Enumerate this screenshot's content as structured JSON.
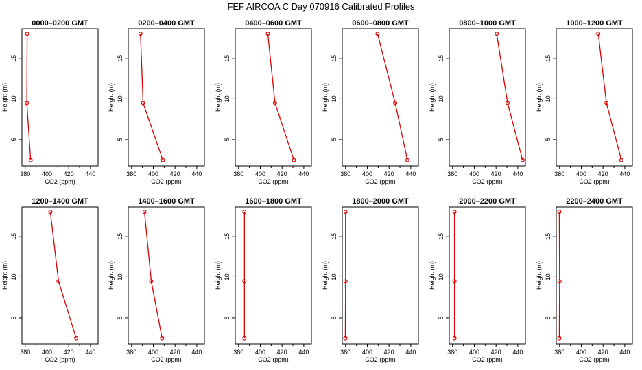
{
  "figure": {
    "title": "FEF AIRCOA C  Day 070916  Calibrated Profiles"
  },
  "colors": {
    "line": "#dd0000",
    "marker": "#dd0000",
    "axis": "#000000"
  },
  "chart_data": [
    {
      "type": "line",
      "title": "0000–0200 GMT",
      "xlabel": "CO2 (ppm)",
      "ylabel": "Height (m)",
      "xlim": [
        377,
        447
      ],
      "ylim": [
        1.8,
        18.6
      ],
      "xticks": [
        380,
        400,
        420,
        440
      ],
      "yticks": [
        5,
        10,
        15
      ],
      "x": [
        381.8,
        381.5,
        385.0
      ],
      "y": [
        18,
        9.5,
        2.5
      ]
    },
    {
      "type": "line",
      "title": "0200–0400 GMT",
      "xlabel": "CO2 (ppm)",
      "ylabel": "Height (m)",
      "xlim": [
        377,
        447
      ],
      "ylim": [
        1.8,
        18.6
      ],
      "xticks": [
        380,
        400,
        420,
        440
      ],
      "yticks": [
        5,
        10,
        15
      ],
      "x": [
        388.2,
        390.6,
        408.8
      ],
      "y": [
        18,
        9.5,
        2.5
      ]
    },
    {
      "type": "line",
      "title": "0400–0600 GMT",
      "xlabel": "CO2 (ppm)",
      "ylabel": "Height (m)",
      "xlim": [
        377,
        447
      ],
      "ylim": [
        1.8,
        18.6
      ],
      "xticks": [
        380,
        400,
        420,
        440
      ],
      "yticks": [
        5,
        10,
        15
      ],
      "x": [
        406.9,
        413.5,
        430.9
      ],
      "y": [
        18,
        9.5,
        2.5
      ]
    },
    {
      "type": "line",
      "title": "0600–0800 GMT",
      "xlabel": "CO2 (ppm)",
      "ylabel": "Height (m)",
      "xlim": [
        377,
        447
      ],
      "ylim": [
        1.8,
        18.6
      ],
      "xticks": [
        380,
        400,
        420,
        440
      ],
      "yticks": [
        5,
        10,
        15
      ],
      "x": [
        409.4,
        425.6,
        436.9
      ],
      "y": [
        18,
        9.5,
        2.5
      ]
    },
    {
      "type": "line",
      "title": "0800–1000 GMT",
      "xlabel": "CO2 (ppm)",
      "ylabel": "Height (m)",
      "xlim": [
        377,
        447
      ],
      "ylim": [
        1.8,
        18.6
      ],
      "xticks": [
        380,
        400,
        420,
        440
      ],
      "yticks": [
        5,
        10,
        15
      ],
      "x": [
        420.6,
        430.6,
        444.4
      ],
      "y": [
        18,
        9.5,
        2.5
      ]
    },
    {
      "type": "line",
      "title": "1000–1200 GMT",
      "xlabel": "CO2 (ppm)",
      "ylabel": "Height (m)",
      "xlim": [
        377,
        447
      ],
      "ylim": [
        1.8,
        18.6
      ],
      "xticks": [
        380,
        400,
        420,
        440
      ],
      "yticks": [
        5,
        10,
        15
      ],
      "x": [
        415.6,
        423.1,
        436.9
      ],
      "y": [
        18,
        9.5,
        2.5
      ]
    },
    {
      "type": "line",
      "title": "1200–1400 GMT",
      "xlabel": "CO2 (ppm)",
      "ylabel": "Height (m)",
      "xlim": [
        377,
        447
      ],
      "ylim": [
        1.8,
        18.6
      ],
      "xticks": [
        380,
        400,
        420,
        440
      ],
      "yticks": [
        5,
        10,
        15
      ],
      "x": [
        403.1,
        410.6,
        426.9
      ],
      "y": [
        18,
        9.5,
        2.5
      ]
    },
    {
      "type": "line",
      "title": "1400–1600 GMT",
      "xlabel": "CO2 (ppm)",
      "ylabel": "Height (m)",
      "xlim": [
        377,
        447
      ],
      "ylim": [
        1.8,
        18.6
      ],
      "xticks": [
        380,
        400,
        420,
        440
      ],
      "yticks": [
        5,
        10,
        15
      ],
      "x": [
        391.9,
        398.1,
        408.1
      ],
      "y": [
        18,
        9.5,
        2.5
      ]
    },
    {
      "type": "line",
      "title": "1600–1800 GMT",
      "xlabel": "CO2 (ppm)",
      "ylabel": "Height (m)",
      "xlim": [
        377,
        447
      ],
      "ylim": [
        1.8,
        18.6
      ],
      "xticks": [
        380,
        400,
        420,
        440
      ],
      "yticks": [
        5,
        10,
        15
      ],
      "x": [
        385.4,
        385.4,
        385.4
      ],
      "y": [
        18,
        9.5,
        2.5
      ]
    },
    {
      "type": "line",
      "title": "1800–2000 GMT",
      "xlabel": "CO2 (ppm)",
      "ylabel": "Height (m)",
      "xlim": [
        377,
        447
      ],
      "ylim": [
        1.8,
        18.6
      ],
      "xticks": [
        380,
        400,
        420,
        440
      ],
      "yticks": [
        5,
        10,
        15
      ],
      "x": [
        380.0,
        380.0,
        379.8
      ],
      "y": [
        18,
        9.5,
        2.5
      ]
    },
    {
      "type": "line",
      "title": "2000–2200 GMT",
      "xlabel": "CO2 (ppm)",
      "ylabel": "Height (m)",
      "xlim": [
        377,
        447
      ],
      "ylim": [
        1.8,
        18.6
      ],
      "xticks": [
        380,
        400,
        420,
        440
      ],
      "yticks": [
        5,
        10,
        15
      ],
      "x": [
        381.8,
        381.8,
        381.8
      ],
      "y": [
        18,
        9.5,
        2.5
      ]
    },
    {
      "type": "line",
      "title": "2200–2400 GMT",
      "xlabel": "CO2 (ppm)",
      "ylabel": "Height (m)",
      "xlim": [
        377,
        447
      ],
      "ylim": [
        1.8,
        18.6
      ],
      "xticks": [
        380,
        400,
        420,
        440
      ],
      "yticks": [
        5,
        10,
        15
      ],
      "x": [
        379.8,
        380.0,
        379.8
      ],
      "y": [
        18,
        9.5,
        2.5
      ]
    }
  ]
}
